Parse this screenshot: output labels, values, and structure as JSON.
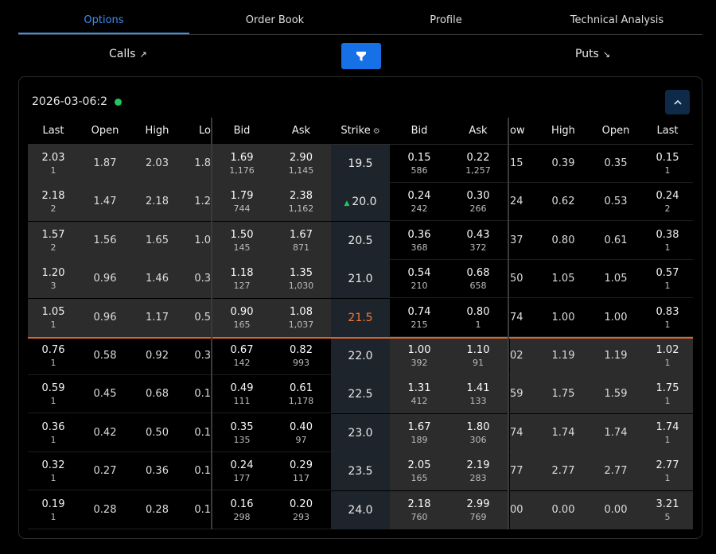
{
  "tabs": [
    {
      "label": "Options",
      "active": true
    },
    {
      "label": "Order Book",
      "active": false
    },
    {
      "label": "Profile",
      "active": false
    },
    {
      "label": "Technical Analysis",
      "active": false
    }
  ],
  "types": {
    "calls": "Calls",
    "puts": "Puts",
    "calls_icon": "arrow-up-right-icon",
    "puts_icon": "arrow-down-right-icon"
  },
  "filter": {
    "icon": "filter-icon",
    "color": "#1670e6"
  },
  "expiry": {
    "label": "2026-03-06:2",
    "status_color": "#22c55e"
  },
  "collapse_icon": "chevron-up-icon",
  "headers": {
    "calls": [
      "Last",
      "Open",
      "High",
      "Lo"
    ],
    "bid": "Bid",
    "ask": "Ask",
    "strike": "Strike",
    "put_bid": "Bid",
    "put_ask": "Ask",
    "puts": [
      "ow",
      "High",
      "Open",
      "Last"
    ]
  },
  "colors": {
    "atm_strike": "#f07a3c",
    "atm_line": "#e0622a",
    "itm_bg": "#2c2c2c",
    "up_indicator": "#22c55e"
  },
  "rows": [
    {
      "c_last": "2.03",
      "c_last_sub": "1",
      "c_open": "1.87",
      "c_high": "2.03",
      "c_low": "1.8",
      "c_bid": "1.69",
      "c_bid_sub": "1,176",
      "c_ask": "2.90",
      "c_ask_sub": "1,145",
      "strike": "19.5",
      "p_bid": "0.15",
      "p_bid_sub": "586",
      "p_ask": "0.22",
      "p_ask_sub": "1,257",
      "p_low": "15",
      "p_high": "0.39",
      "p_open": "0.35",
      "p_last": "0.15",
      "p_last_sub": "1"
    },
    {
      "c_last": "2.18",
      "c_last_sub": "2",
      "c_open": "1.47",
      "c_high": "2.18",
      "c_low": "1.2",
      "c_bid": "1.79",
      "c_bid_sub": "744",
      "c_ask": "2.38",
      "c_ask_sub": "1,162",
      "strike": "20.0",
      "p_bid": "0.24",
      "p_bid_sub": "242",
      "p_ask": "0.30",
      "p_ask_sub": "266",
      "p_low": "24",
      "p_high": "0.62",
      "p_open": "0.53",
      "p_last": "0.24",
      "p_last_sub": "2"
    },
    {
      "c_last": "1.57",
      "c_last_sub": "2",
      "c_open": "1.56",
      "c_high": "1.65",
      "c_low": "1.0",
      "c_bid": "1.50",
      "c_bid_sub": "145",
      "c_ask": "1.67",
      "c_ask_sub": "871",
      "strike": "20.5",
      "p_bid": "0.36",
      "p_bid_sub": "368",
      "p_ask": "0.43",
      "p_ask_sub": "372",
      "p_low": "37",
      "p_high": "0.80",
      "p_open": "0.61",
      "p_last": "0.38",
      "p_last_sub": "1"
    },
    {
      "c_last": "1.20",
      "c_last_sub": "3",
      "c_open": "0.96",
      "c_high": "1.46",
      "c_low": "0.3",
      "c_bid": "1.18",
      "c_bid_sub": "127",
      "c_ask": "1.35",
      "c_ask_sub": "1,030",
      "strike": "21.0",
      "p_bid": "0.54",
      "p_bid_sub": "210",
      "p_ask": "0.68",
      "p_ask_sub": "658",
      "p_low": "50",
      "p_high": "1.05",
      "p_open": "1.05",
      "p_last": "0.57",
      "p_last_sub": "1"
    },
    {
      "c_last": "1.05",
      "c_last_sub": "1",
      "c_open": "0.96",
      "c_high": "1.17",
      "c_low": "0.5",
      "c_bid": "0.90",
      "c_bid_sub": "165",
      "c_ask": "1.08",
      "c_ask_sub": "1,037",
      "strike": "21.5",
      "p_bid": "0.74",
      "p_bid_sub": "215",
      "p_ask": "0.80",
      "p_ask_sub": "1",
      "p_low": "74",
      "p_high": "1.00",
      "p_open": "1.00",
      "p_last": "0.83",
      "p_last_sub": "1"
    },
    {
      "c_last": "0.76",
      "c_last_sub": "1",
      "c_open": "0.58",
      "c_high": "0.92",
      "c_low": "0.3",
      "c_bid": "0.67",
      "c_bid_sub": "142",
      "c_ask": "0.82",
      "c_ask_sub": "993",
      "strike": "22.0",
      "p_bid": "1.00",
      "p_bid_sub": "392",
      "p_ask": "1.10",
      "p_ask_sub": "91",
      "p_low": "02",
      "p_high": "1.19",
      "p_open": "1.19",
      "p_last": "1.02",
      "p_last_sub": "1"
    },
    {
      "c_last": "0.59",
      "c_last_sub": "1",
      "c_open": "0.45",
      "c_high": "0.68",
      "c_low": "0.1",
      "c_bid": "0.49",
      "c_bid_sub": "111",
      "c_ask": "0.61",
      "c_ask_sub": "1,178",
      "strike": "22.5",
      "p_bid": "1.31",
      "p_bid_sub": "412",
      "p_ask": "1.41",
      "p_ask_sub": "133",
      "p_low": "59",
      "p_high": "1.75",
      "p_open": "1.59",
      "p_last": "1.75",
      "p_last_sub": "1"
    },
    {
      "c_last": "0.36",
      "c_last_sub": "1",
      "c_open": "0.42",
      "c_high": "0.50",
      "c_low": "0.1",
      "c_bid": "0.35",
      "c_bid_sub": "135",
      "c_ask": "0.40",
      "c_ask_sub": "97",
      "strike": "23.0",
      "p_bid": "1.67",
      "p_bid_sub": "189",
      "p_ask": "1.80",
      "p_ask_sub": "306",
      "p_low": "74",
      "p_high": "1.74",
      "p_open": "1.74",
      "p_last": "1.74",
      "p_last_sub": "1"
    },
    {
      "c_last": "0.32",
      "c_last_sub": "1",
      "c_open": "0.27",
      "c_high": "0.36",
      "c_low": "0.1",
      "c_bid": "0.24",
      "c_bid_sub": "177",
      "c_ask": "0.29",
      "c_ask_sub": "117",
      "strike": "23.5",
      "p_bid": "2.05",
      "p_bid_sub": "165",
      "p_ask": "2.19",
      "p_ask_sub": "283",
      "p_low": "77",
      "p_high": "2.77",
      "p_open": "2.77",
      "p_last": "2.77",
      "p_last_sub": "1"
    },
    {
      "c_last": "0.19",
      "c_last_sub": "1",
      "c_open": "0.28",
      "c_high": "0.28",
      "c_low": "0.1",
      "c_bid": "0.16",
      "c_bid_sub": "298",
      "c_ask": "0.20",
      "c_ask_sub": "293",
      "strike": "24.0",
      "p_bid": "2.18",
      "p_bid_sub": "760",
      "p_ask": "2.99",
      "p_ask_sub": "769",
      "p_low": "00",
      "p_high": "0.00",
      "p_open": "0.00",
      "p_last": "3.21",
      "p_last_sub": "5"
    }
  ]
}
